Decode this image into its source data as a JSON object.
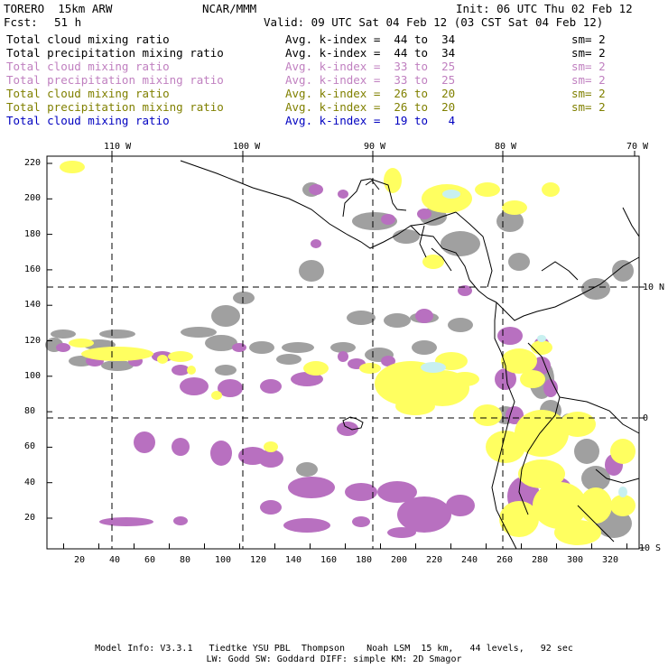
{
  "header": {
    "model": "TORERO  15km ARW",
    "org": "NCAR/MMM",
    "init": "Init: 06 UTC Thu 02 Feb 12",
    "fcst_label": "Fcst:",
    "fcst_value": "51 h",
    "valid": "Valid: 09 UTC Sat 04 Feb 12 (03 CST Sat 04 Feb 12)"
  },
  "legend": [
    {
      "field": "Total cloud mixing ratio",
      "kindex": "Avg. k-index =  44 to  34",
      "sm": "sm= 2",
      "color": "#000000"
    },
    {
      "field": "Total precipitation mixing ratio",
      "kindex": "Avg. k-index =  44 to  34",
      "sm": "sm= 2",
      "color": "#000000"
    },
    {
      "field": "Total cloud mixing ratio",
      "kindex": "Avg. k-index =  33 to  25",
      "sm": "sm= 2",
      "color": "#c080c0"
    },
    {
      "field": "Total precipitation mixing ratio",
      "kindex": "Avg. k-index =  33 to  25",
      "sm": "sm= 2",
      "color": "#c080c0"
    },
    {
      "field": "Total cloud mixing ratio",
      "kindex": "Avg. k-index =  26 to  20",
      "sm": "sm= 2",
      "color": "#808000"
    },
    {
      "field": "Total precipitation mixing ratio",
      "kindex": "Avg. k-index =  26 to  20",
      "sm": "sm= 2",
      "color": "#808000"
    },
    {
      "field": "Total cloud mixing ratio",
      "kindex": "Avg. k-index =  19 to   4",
      "sm": "",
      "color": "#0000c0"
    }
  ],
  "map": {
    "lon_labels": [
      "110 W",
      "100 W",
      "90 W",
      "80 W",
      "70 W"
    ],
    "lat_labels": [
      "10 N",
      "0",
      "10 S"
    ],
    "y_ticks": [
      "220",
      "200",
      "180",
      "160",
      "140",
      "120",
      "100",
      "80",
      "60",
      "40",
      "20"
    ],
    "x_ticks": [
      "20",
      "40",
      "60",
      "80",
      "100",
      "120",
      "140",
      "160",
      "180",
      "200",
      "220",
      "240",
      "260",
      "280",
      "300",
      "320"
    ],
    "colors": {
      "gray": "#a0a0a0",
      "purple": "#b870c0",
      "yellow": "#ffff60",
      "cyan": "#c8f0f0",
      "coast": "#000000"
    }
  },
  "footer": {
    "line1": "Model Info: V3.3.1   Tiedtke YSU PBL  Thompson    Noah LSM  15 km,   44 levels,   92 sec",
    "line2": "LW: Godd SW: Goddard DIFF: simple KM: 2D Smagor"
  }
}
